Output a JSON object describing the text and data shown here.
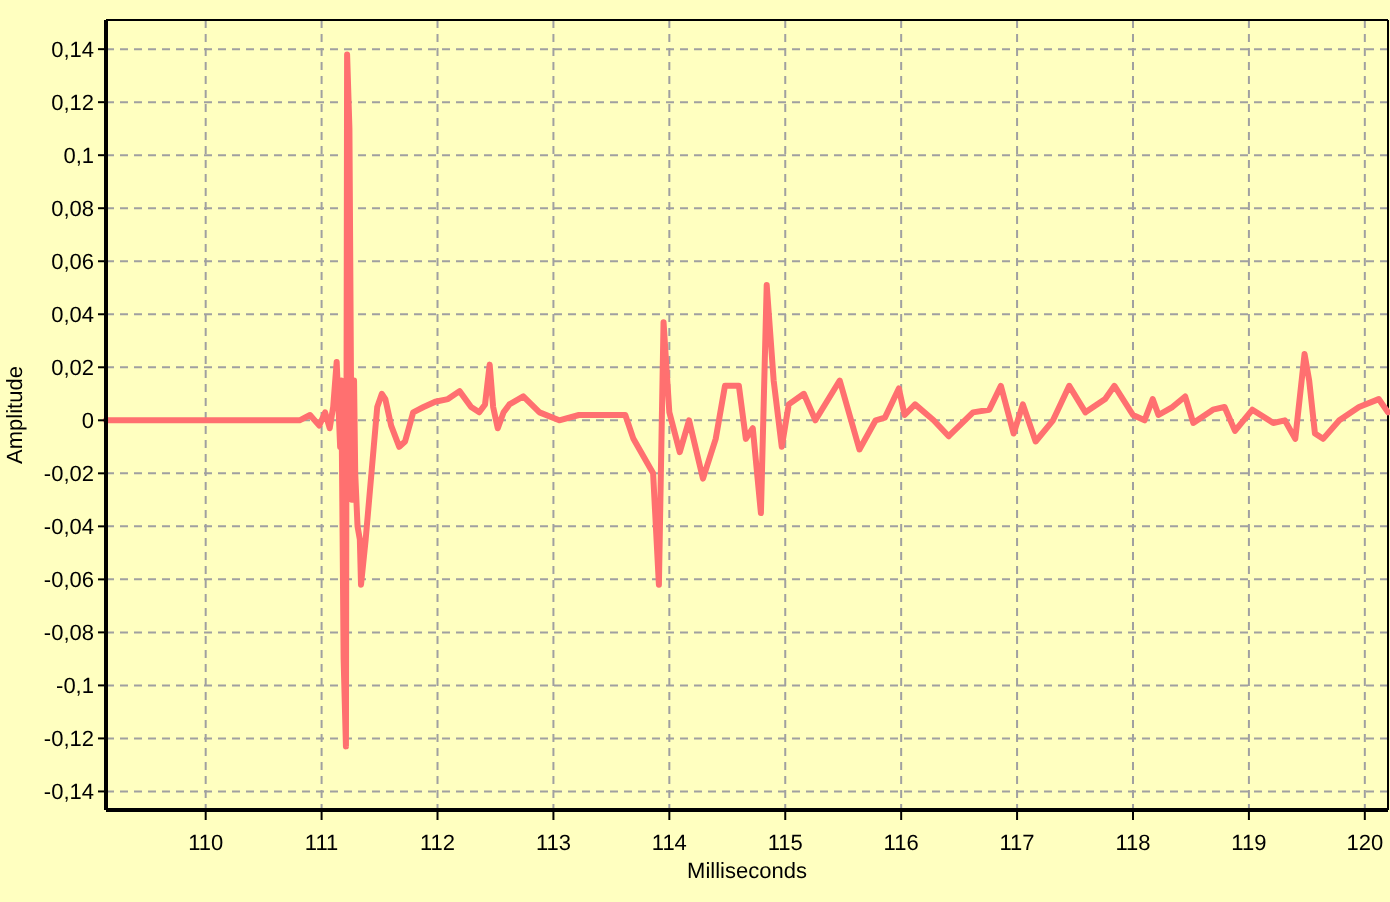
{
  "chart_data": {
    "type": "line",
    "xlabel": "Milliseconds",
    "ylabel": "Amplitude",
    "grid": true,
    "marker": "none",
    "line_style": "solid",
    "xlim": [
      109.14,
      120.2
    ],
    "ylim": [
      -0.147,
      0.151
    ],
    "xticks": [
      110,
      111,
      112,
      113,
      114,
      115,
      116,
      117,
      118,
      119,
      120
    ],
    "yticks": [
      {
        "value": -0.14,
        "label": "-0,14"
      },
      {
        "value": -0.12,
        "label": "-0,12"
      },
      {
        "value": -0.1,
        "label": "-0,1"
      },
      {
        "value": -0.08,
        "label": "-0,08"
      },
      {
        "value": -0.06,
        "label": "-0,06"
      },
      {
        "value": -0.04,
        "label": "-0,04"
      },
      {
        "value": -0.02,
        "label": "-0,02"
      },
      0,
      {
        "value": 0.02,
        "label": "0,02"
      },
      {
        "value": 0.04,
        "label": "0,04"
      },
      {
        "value": 0.06,
        "label": "0,06"
      },
      {
        "value": 0.08,
        "label": "0,08"
      },
      {
        "value": 0.1,
        "label": "0,1"
      },
      {
        "value": 0.12,
        "label": "0,12"
      },
      {
        "value": 0.14,
        "label": "0,14"
      }
    ],
    "series": [
      {
        "color": "#ff7070",
        "x": [
          109.14,
          109.95,
          110.81,
          110.9,
          110.98,
          111.03,
          111.07,
          111.1,
          111.13,
          111.16,
          111.17,
          111.19,
          111.21,
          111.22,
          111.24,
          111.26,
          111.28,
          111.29,
          111.31,
          111.33,
          111.34,
          111.38,
          111.41,
          111.45,
          111.48,
          111.52,
          111.55,
          111.6,
          111.67,
          111.72,
          111.79,
          111.88,
          111.98,
          112.09,
          112.19,
          112.29,
          112.36,
          112.41,
          112.45,
          112.48,
          112.52,
          112.57,
          112.62,
          112.74,
          112.88,
          113.05,
          113.22,
          113.4,
          113.62,
          113.69,
          113.86,
          113.91,
          113.95,
          114.0,
          114.09,
          114.17,
          114.29,
          114.4,
          114.48,
          114.6,
          114.66,
          114.72,
          114.79,
          114.84,
          114.9,
          114.97,
          115.03,
          115.16,
          115.26,
          115.47,
          115.64,
          115.78,
          115.86,
          115.98,
          116.03,
          116.12,
          116.28,
          116.41,
          116.62,
          116.76,
          116.86,
          116.97,
          117.05,
          117.16,
          117.31,
          117.45,
          117.59,
          117.76,
          117.84,
          118.0,
          118.1,
          118.17,
          118.22,
          118.34,
          118.45,
          118.52,
          118.69,
          118.79,
          118.88,
          119.03,
          119.21,
          119.31,
          119.4,
          119.48,
          119.52,
          119.57,
          119.64,
          119.78,
          119.95,
          120.12,
          120.2
        ],
        "values": [
          0,
          0,
          0,
          0.002,
          -0.002,
          0.003,
          -0.003,
          0.005,
          0.022,
          -0.01,
          0.015,
          -0.09,
          -0.123,
          0.138,
          0.11,
          -0.03,
          0.015,
          -0.02,
          -0.04,
          -0.045,
          -0.062,
          -0.045,
          -0.03,
          -0.01,
          0.005,
          0.01,
          0.008,
          -0.002,
          -0.01,
          -0.008,
          0.003,
          0.005,
          0.007,
          0.008,
          0.011,
          0.005,
          0.003,
          0.006,
          0.021,
          0.005,
          -0.003,
          0.003,
          0.006,
          0.009,
          0.003,
          0,
          0.002,
          0.002,
          0.002,
          -0.007,
          -0.02,
          -0.062,
          0.037,
          0.003,
          -0.012,
          0,
          -0.022,
          -0.007,
          0.013,
          0.013,
          -0.007,
          -0.003,
          -0.035,
          0.051,
          0.015,
          -0.01,
          0.006,
          0.01,
          0,
          0.015,
          -0.011,
          0,
          0.001,
          0.012,
          0.002,
          0.006,
          0,
          -0.006,
          0.003,
          0.004,
          0.013,
          -0.005,
          0.006,
          -0.008,
          0,
          0.013,
          0.003,
          0.008,
          0.013,
          0.002,
          0,
          0.008,
          0.002,
          0.005,
          0.009,
          -0.001,
          0.004,
          0.005,
          -0.004,
          0.004,
          -0.001,
          0,
          -0.007,
          0.025,
          0.015,
          -0.005,
          -0.007,
          0,
          0.005,
          0.008,
          0.003
        ]
      }
    ]
  }
}
